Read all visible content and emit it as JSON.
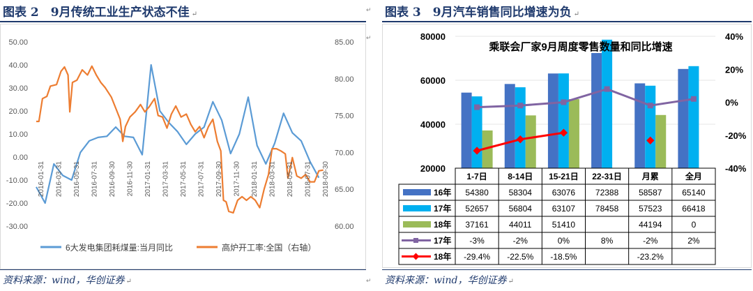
{
  "figures": [
    {
      "heading": "图表 2　9月传统工业生产状态不佳",
      "source": "资料来源：wind，华创证券"
    },
    {
      "heading": "图表 3　9月汽车销售同比增速为负",
      "source": "资料来源：wind，华创证券"
    }
  ],
  "chart_data": [
    {
      "type": "line",
      "title": "",
      "x_tick_labels": [
        "2016-01-31",
        "2016-03-31",
        "2016-05-31",
        "2016-07-31",
        "2016-09-30",
        "2016-11-30",
        "2017-01-31",
        "2017-03-31",
        "2017-05-31",
        "2017-07-31",
        "2017-09-30",
        "2017-11-30",
        "2018-01-31",
        "2018-03-31",
        "2018-05-31",
        "2018-07-31",
        "2018-09-30"
      ],
      "ylim_left": [
        -30,
        50
      ],
      "ylim_right": [
        60,
        85
      ],
      "y_ticks_left": [
        "-30.00",
        "-20.00",
        "-10.00",
        "0.00",
        "10.00",
        "20.00",
        "30.00",
        "40.00",
        "50.00"
      ],
      "y_ticks_right": [
        "60.00",
        "65.00",
        "70.00",
        "75.00",
        "80.00",
        "85.00"
      ],
      "x_range": [
        0,
        33
      ],
      "series": [
        {
          "name": "6大发电集团耗煤量:当月同比",
          "axis": "left",
          "color": "#5b9bd5",
          "points": [
            [
              0,
              -13
            ],
            [
              1,
              -20
            ],
            [
              2,
              -3
            ],
            [
              3,
              -8
            ],
            [
              4,
              -10
            ],
            [
              5,
              2
            ],
            [
              6,
              7
            ],
            [
              7,
              8.5
            ],
            [
              8,
              9
            ],
            [
              9,
              13
            ],
            [
              10,
              9
            ],
            [
              11,
              8.5
            ],
            [
              12,
              1
            ],
            [
              13,
              40
            ],
            [
              14,
              20
            ],
            [
              15,
              15
            ],
            [
              16,
              11
            ],
            [
              17,
              5.5
            ],
            [
              18,
              10
            ],
            [
              19,
              13
            ],
            [
              20,
              24
            ],
            [
              21,
              16
            ],
            [
              22,
              1.5
            ],
            [
              23,
              10
            ],
            [
              24,
              26
            ],
            [
              25,
              5
            ],
            [
              26,
              -3
            ],
            [
              27,
              6
            ],
            [
              28,
              19
            ],
            [
              29,
              10.5
            ],
            [
              30,
              7
            ],
            [
              31,
              -2
            ],
            [
              32,
              -9
            ]
          ]
        },
        {
          "name": "高炉开工率:全国（右轴）",
          "axis": "right",
          "color": "#ed7d31",
          "points": [
            [
              0,
              74.2
            ],
            [
              0.3,
              74.2
            ],
            [
              0.7,
              77.3
            ],
            [
              1.2,
              77.6
            ],
            [
              1.6,
              79
            ],
            [
              2.3,
              79.2
            ],
            [
              2.8,
              81
            ],
            [
              3.2,
              81.6
            ],
            [
              3.6,
              80.5
            ],
            [
              3.8,
              75.5
            ],
            [
              4.1,
              79.5
            ],
            [
              4.6,
              79.8
            ],
            [
              5.2,
              81.2
            ],
            [
              5.8,
              80.5
            ],
            [
              6.3,
              81.7
            ],
            [
              6.8,
              80.5
            ],
            [
              7.3,
              79.5
            ],
            [
              7.8,
              78.8
            ],
            [
              8.5,
              77.5
            ],
            [
              9,
              76
            ],
            [
              9.5,
              74.5
            ],
            [
              9.8,
              71.5
            ],
            [
              10.1,
              73.5
            ],
            [
              10.6,
              74.8
            ],
            [
              11.2,
              75.5
            ],
            [
              11.8,
              76.5
            ],
            [
              12.3,
              75.5
            ],
            [
              12.8,
              76.2
            ],
            [
              13.4,
              77.3
            ],
            [
              13.8,
              75
            ],
            [
              14.3,
              74.8
            ],
            [
              14.8,
              73.3
            ],
            [
              15.3,
              75.2
            ],
            [
              15.8,
              76.3
            ],
            [
              16.4,
              74.8
            ],
            [
              17,
              75.2
            ],
            [
              17.5,
              73.8
            ],
            [
              18,
              72.8
            ],
            [
              18.5,
              73.5
            ],
            [
              19,
              72
            ],
            [
              19.5,
              73.5
            ],
            [
              20,
              74.5
            ],
            [
              20.5,
              71.5
            ],
            [
              20.9,
              70.2
            ],
            [
              21.2,
              63.5
            ],
            [
              21.5,
              63.3
            ],
            [
              21.8,
              62
            ],
            [
              22.3,
              61.8
            ],
            [
              22.8,
              63.5
            ],
            [
              23.3,
              64
            ],
            [
              23.8,
              63.5
            ],
            [
              24.3,
              64
            ],
            [
              24.8,
              63.5
            ],
            [
              25.3,
              62.5
            ],
            [
              25.8,
              65
            ],
            [
              26.3,
              67
            ],
            [
              26.7,
              70.5
            ],
            [
              27.2,
              70.5
            ],
            [
              27.7,
              70.2
            ],
            [
              28.2,
              69.8
            ],
            [
              28.5,
              66.5
            ],
            [
              29,
              69.3
            ],
            [
              29.5,
              66.8
            ],
            [
              30,
              66.5
            ],
            [
              30.5,
              67
            ],
            [
              31,
              66
            ],
            [
              31.5,
              66
            ],
            [
              32,
              67.5
            ],
            [
              32.5,
              67.6
            ]
          ]
        }
      ],
      "legend": "bottom"
    },
    {
      "type": "bar",
      "title": "乘联会厂家9月周度零售数量和同比增速",
      "categories": [
        "1-7日",
        "8-14日",
        "15-21日",
        "22-31日",
        "月累",
        "全月"
      ],
      "ylim_left": [
        20000,
        80000
      ],
      "ylim_right": [
        -0.4,
        0.4
      ],
      "y_ticks_left": [
        "20000",
        "40000",
        "60000",
        "80000"
      ],
      "y_ticks_right": [
        "-40%",
        "-20%",
        "0%",
        "20%",
        "40%"
      ],
      "series": [
        {
          "name": "16年",
          "kind": "bar",
          "color": "#4472c4",
          "values": [
            54380,
            58304,
            63076,
            72388,
            58587,
            65140
          ],
          "labels": [
            "54380",
            "58304",
            "63076",
            "72388",
            "58587",
            "65140"
          ]
        },
        {
          "name": "17年",
          "kind": "bar",
          "color": "#00b0f0",
          "values": [
            52657,
            56804,
            63107,
            78458,
            57523,
            66418
          ],
          "labels": [
            "52657",
            "56804",
            "63107",
            "78458",
            "57523",
            "66418"
          ]
        },
        {
          "name": "18年",
          "kind": "bar",
          "color": "#9bbb59",
          "values": [
            37161,
            44011,
            51410,
            null,
            44194,
            0
          ],
          "labels": [
            "37161",
            "44011",
            "51410",
            "",
            "44194",
            "0"
          ]
        },
        {
          "name": "17年",
          "kind": "line",
          "axis": "right",
          "color": "#8064a2",
          "values": [
            -0.03,
            -0.02,
            0.0,
            0.08,
            -0.02,
            0.02
          ],
          "labels": [
            "-3%",
            "-2%",
            "0%",
            "8%",
            "-2%",
            "2%"
          ]
        },
        {
          "name": "18年",
          "kind": "line",
          "axis": "right",
          "color": "#ff0000",
          "values": [
            -0.294,
            -0.225,
            -0.185,
            null,
            -0.232,
            null
          ],
          "labels": [
            "-29.4%",
            "-22.5%",
            "-18.5%",
            "",
            "-23.2%",
            ""
          ],
          "connect_first": 3
        }
      ]
    }
  ]
}
